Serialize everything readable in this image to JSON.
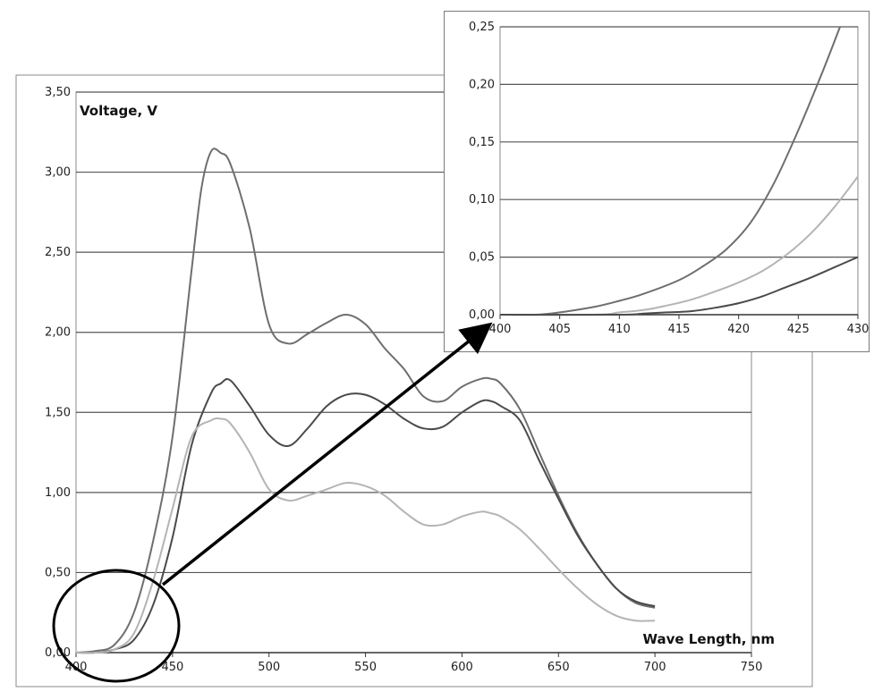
{
  "chart_data": [
    {
      "type": "line",
      "ylabel": "Voltage, V",
      "xlabel": "Wave Length, nm",
      "xlim": [
        400,
        750
      ],
      "ylim": [
        0,
        3.5
      ],
      "x_ticks": [
        "400",
        "450",
        "500",
        "550",
        "600",
        "650",
        "700",
        "750"
      ],
      "y_ticks": [
        "0,00",
        "0,50",
        "1,00",
        "1,50",
        "2,00",
        "2,50",
        "3,00",
        "3,50"
      ],
      "grid": "horizontal",
      "legend": "none",
      "series": [
        {
          "color": "#6e6e6e",
          "x": [
            400,
            410,
            420,
            430,
            440,
            450,
            460,
            465,
            470,
            475,
            480,
            490,
            500,
            510,
            520,
            530,
            540,
            550,
            560,
            570,
            580,
            590,
            600,
            610,
            615,
            620,
            630,
            640,
            650,
            660,
            670,
            680,
            690,
            700
          ],
          "y": [
            0.0,
            0.01,
            0.05,
            0.25,
            0.7,
            1.35,
            2.4,
            2.9,
            3.13,
            3.12,
            3.05,
            2.65,
            2.05,
            1.93,
            1.99,
            2.06,
            2.11,
            2.05,
            1.9,
            1.77,
            1.6,
            1.57,
            1.66,
            1.71,
            1.71,
            1.68,
            1.52,
            1.25,
            0.98,
            0.74,
            0.55,
            0.4,
            0.31,
            0.28
          ]
        },
        {
          "color": "#4a4a4a",
          "x": [
            400,
            410,
            420,
            430,
            440,
            450,
            460,
            470,
            475,
            480,
            490,
            500,
            510,
            520,
            530,
            540,
            550,
            560,
            570,
            580,
            590,
            600,
            610,
            615,
            620,
            630,
            640,
            650,
            660,
            670,
            680,
            690,
            700
          ],
          "y": [
            0.0,
            0.0,
            0.02,
            0.08,
            0.3,
            0.72,
            1.3,
            1.62,
            1.68,
            1.7,
            1.54,
            1.36,
            1.29,
            1.4,
            1.54,
            1.61,
            1.61,
            1.55,
            1.46,
            1.4,
            1.41,
            1.5,
            1.57,
            1.57,
            1.54,
            1.45,
            1.2,
            0.96,
            0.73,
            0.55,
            0.4,
            0.32,
            0.29
          ]
        },
        {
          "color": "#b4b4b4",
          "x": [
            400,
            410,
            420,
            430,
            440,
            450,
            460,
            470,
            475,
            480,
            490,
            500,
            510,
            520,
            530,
            540,
            550,
            560,
            570,
            580,
            590,
            600,
            610,
            615,
            620,
            630,
            640,
            650,
            660,
            670,
            680,
            690,
            700
          ],
          "y": [
            0.0,
            0.0,
            0.02,
            0.12,
            0.45,
            0.9,
            1.35,
            1.45,
            1.46,
            1.43,
            1.25,
            1.02,
            0.95,
            0.98,
            1.02,
            1.06,
            1.04,
            0.98,
            0.88,
            0.8,
            0.8,
            0.85,
            0.88,
            0.87,
            0.85,
            0.77,
            0.65,
            0.52,
            0.4,
            0.3,
            0.23,
            0.2,
            0.2
          ]
        }
      ]
    },
    {
      "type": "line",
      "xlim": [
        400,
        430
      ],
      "ylim": [
        0,
        0.25
      ],
      "x_ticks": [
        "400",
        "405",
        "410",
        "415",
        "420",
        "425",
        "430"
      ],
      "y_ticks": [
        "0,00",
        "0,05",
        "0,10",
        "0,15",
        "0,20",
        "0,25"
      ],
      "grid": "horizontal",
      "legend": "none",
      "series": [
        {
          "color": "#6e6e6e",
          "x": [
            400,
            403,
            405,
            408,
            410,
            412,
            415,
            417,
            419,
            421,
            423,
            425,
            427,
            428.5
          ],
          "y": [
            0.0,
            0.0,
            0.002,
            0.007,
            0.012,
            0.018,
            0.03,
            0.042,
            0.057,
            0.08,
            0.115,
            0.16,
            0.21,
            0.25
          ]
        },
        {
          "color": "#b4b4b4",
          "x": [
            400,
            408,
            410,
            412,
            414,
            416,
            418,
            420,
            422,
            424,
            426,
            428,
            430
          ],
          "y": [
            0.0,
            0.0,
            0.002,
            0.004,
            0.008,
            0.013,
            0.02,
            0.028,
            0.038,
            0.052,
            0.07,
            0.093,
            0.12
          ]
        },
        {
          "color": "#4a4a4a",
          "x": [
            400,
            410,
            412,
            414,
            416,
            418,
            420,
            422,
            424,
            426,
            428,
            430
          ],
          "y": [
            0.0,
            0.0,
            0.001,
            0.002,
            0.003,
            0.006,
            0.01,
            0.016,
            0.024,
            0.032,
            0.041,
            0.05
          ]
        }
      ]
    }
  ]
}
